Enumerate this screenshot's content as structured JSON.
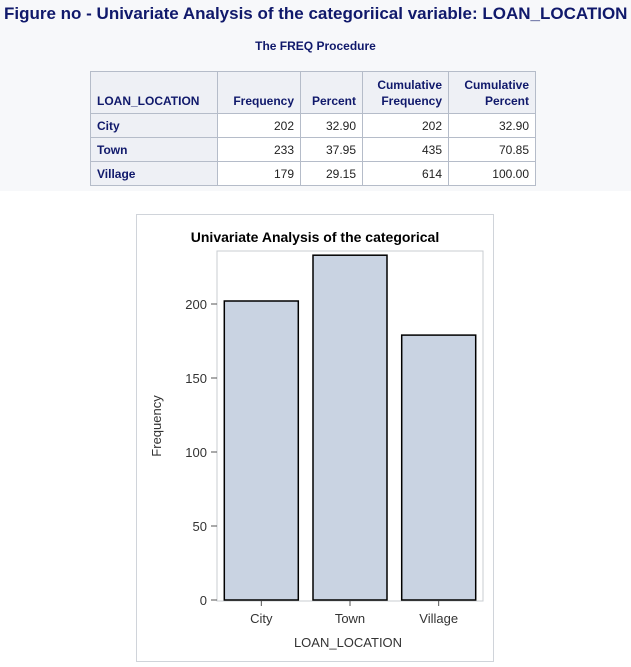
{
  "page": {
    "figure_title": "Figure no - Univariate Analysis of the categoriical variable: LOAN_LOCATION",
    "proc_title": "The FREQ Procedure"
  },
  "table": {
    "headers": [
      {
        "line1": "",
        "line2": "LOAN_LOCATION"
      },
      {
        "line1": "",
        "line2": "Frequency"
      },
      {
        "line1": "",
        "line2": "Percent"
      },
      {
        "line1": "Cumulative",
        "line2": "Frequency"
      },
      {
        "line1": "Cumulative",
        "line2": "Percent"
      }
    ],
    "rows": [
      {
        "label": "City",
        "frequency": "202",
        "percent": "32.90",
        "cum_frequency": "202",
        "cum_percent": "32.90"
      },
      {
        "label": "Town",
        "frequency": "233",
        "percent": "37.95",
        "cum_frequency": "435",
        "cum_percent": "70.85"
      },
      {
        "label": "Village",
        "frequency": "179",
        "percent": "29.15",
        "cum_frequency": "614",
        "cum_percent": "100.00"
      }
    ]
  },
  "chart_data": {
    "type": "bar",
    "title": "Univariate Analysis of the categorical",
    "xlabel": "LOAN_LOCATION",
    "ylabel": "Frequency",
    "categories": [
      "City",
      "Town",
      "Village"
    ],
    "values": [
      202,
      233,
      179
    ],
    "ylim": [
      0,
      240
    ],
    "yticks": [
      0,
      50,
      100,
      150,
      200
    ],
    "grid": false,
    "legend": "none",
    "bar_color": "#c9d3e2",
    "bar_outline": "#000000"
  }
}
